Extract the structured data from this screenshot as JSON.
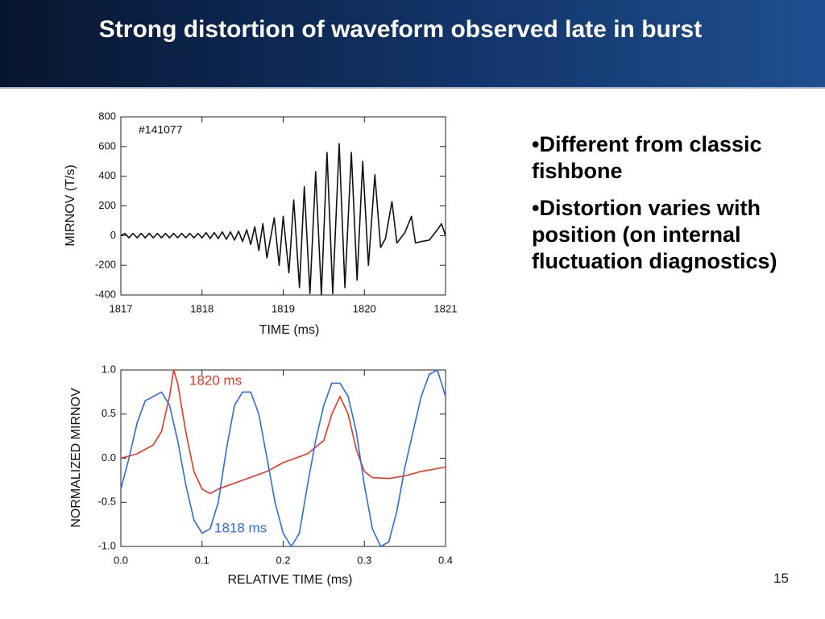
{
  "header": {
    "title": "Strong distortion of waveform observed late in burst"
  },
  "bullets": [
    "•Different from classic fishbone",
    "•Distortion varies with position (on internal fluctuation diagnostics)"
  ],
  "page_number": "15",
  "chart_data": [
    {
      "type": "line",
      "xlabel": "TIME (ms)",
      "ylabel": "MIRNOV (T/s)",
      "annotation": "#141077",
      "xlim": [
        1817,
        1821
      ],
      "xticks": [
        1817,
        1818,
        1819,
        1820,
        1821
      ],
      "ylim": [
        -400,
        800
      ],
      "yticks": [
        -400,
        -200,
        0,
        200,
        400,
        600,
        800
      ],
      "series": [
        {
          "color": "#111111",
          "x": [
            1817,
            1817.05,
            1817.1,
            1817.15,
            1817.2,
            1817.25,
            1817.3,
            1817.35,
            1817.4,
            1817.45,
            1817.5,
            1817.55,
            1817.6,
            1817.65,
            1817.7,
            1817.75,
            1817.8,
            1817.85,
            1817.9,
            1817.95,
            1818,
            1818.05,
            1818.1,
            1818.15,
            1818.2,
            1818.25,
            1818.3,
            1818.35,
            1818.4,
            1818.45,
            1818.5,
            1818.55,
            1818.6,
            1818.65,
            1818.7,
            1818.75,
            1818.8,
            1818.89,
            1818.95,
            1819.0,
            1819.07,
            1819.13,
            1819.2,
            1819.26,
            1819.33,
            1819.4,
            1819.47,
            1819.54,
            1819.61,
            1819.69,
            1819.76,
            1819.84,
            1819.91,
            1819.98,
            1820.05,
            1820.13,
            1820.2,
            1820.26,
            1820.34,
            1820.4,
            1820.5,
            1820.58,
            1820.63,
            1820.7,
            1820.8,
            1820.9,
            1820.95,
            1821
          ],
          "values": [
            0,
            15,
            -15,
            15,
            -15,
            15,
            -15,
            15,
            -15,
            15,
            -15,
            15,
            -15,
            15,
            -15,
            15,
            -15,
            15,
            -15,
            15,
            -15,
            20,
            -20,
            20,
            -20,
            25,
            -25,
            25,
            -30,
            30,
            -40,
            40,
            -60,
            60,
            -100,
            80,
            -150,
            120,
            -200,
            130,
            -250,
            240,
            -350,
            330,
            -390,
            430,
            -400,
            560,
            -390,
            620,
            -350,
            560,
            -300,
            500,
            -200,
            410,
            -80,
            -20,
            230,
            -50,
            20,
            130,
            -50,
            -40,
            -30,
            40,
            80,
            0
          ]
        }
      ]
    },
    {
      "type": "line",
      "xlabel": "RELATIVE TIME (ms)",
      "ylabel": "NORMALIZED MIRNOV",
      "xlim": [
        0,
        0.4
      ],
      "xticks": [
        {
          "value": 0,
          "label": "0.0"
        },
        0.1,
        0.2,
        0.3,
        0.4
      ],
      "ylim": [
        -1,
        1
      ],
      "yticks": [
        {
          "value": -1,
          "label": "-1.0"
        },
        -0.5,
        {
          "value": 0,
          "label": "0.0"
        },
        0.5,
        {
          "value": 1,
          "label": "1.0"
        }
      ],
      "series": [
        {
          "name": "1820 ms",
          "color": "#e8351e",
          "x": [
            0,
            0.02,
            0.04,
            0.05,
            0.06,
            0.065,
            0.07,
            0.08,
            0.09,
            0.1,
            0.11,
            0.12,
            0.15,
            0.18,
            0.2,
            0.23,
            0.25,
            0.26,
            0.27,
            0.28,
            0.29,
            0.3,
            0.31,
            0.33,
            0.35,
            0.37,
            0.4
          ],
          "values": [
            0,
            0.05,
            0.15,
            0.3,
            0.7,
            1.0,
            0.85,
            0.3,
            -0.15,
            -0.35,
            -0.4,
            -0.35,
            -0.25,
            -0.15,
            -0.05,
            0.05,
            0.2,
            0.5,
            0.7,
            0.5,
            0.1,
            -0.15,
            -0.22,
            -0.23,
            -0.2,
            -0.15,
            -0.1
          ]
        },
        {
          "name": "1818 ms",
          "color": "#2a6de0",
          "x": [
            0,
            0.01,
            0.02,
            0.03,
            0.04,
            0.05,
            0.06,
            0.07,
            0.08,
            0.09,
            0.1,
            0.11,
            0.12,
            0.13,
            0.14,
            0.15,
            0.16,
            0.17,
            0.18,
            0.19,
            0.2,
            0.21,
            0.22,
            0.23,
            0.24,
            0.25,
            0.26,
            0.27,
            0.28,
            0.29,
            0.3,
            0.31,
            0.32,
            0.33,
            0.34,
            0.35,
            0.36,
            0.37,
            0.38,
            0.39,
            0.4
          ],
          "values": [
            -0.35,
            0.0,
            0.4,
            0.65,
            0.7,
            0.75,
            0.6,
            0.2,
            -0.3,
            -0.7,
            -0.85,
            -0.8,
            -0.5,
            0.1,
            0.6,
            0.75,
            0.75,
            0.5,
            0.0,
            -0.5,
            -0.85,
            -1.0,
            -0.85,
            -0.3,
            0.2,
            0.6,
            0.85,
            0.85,
            0.7,
            0.3,
            -0.3,
            -0.8,
            -1.0,
            -0.95,
            -0.6,
            -0.1,
            0.3,
            0.7,
            0.95,
            1.0,
            0.7
          ]
        }
      ]
    }
  ]
}
